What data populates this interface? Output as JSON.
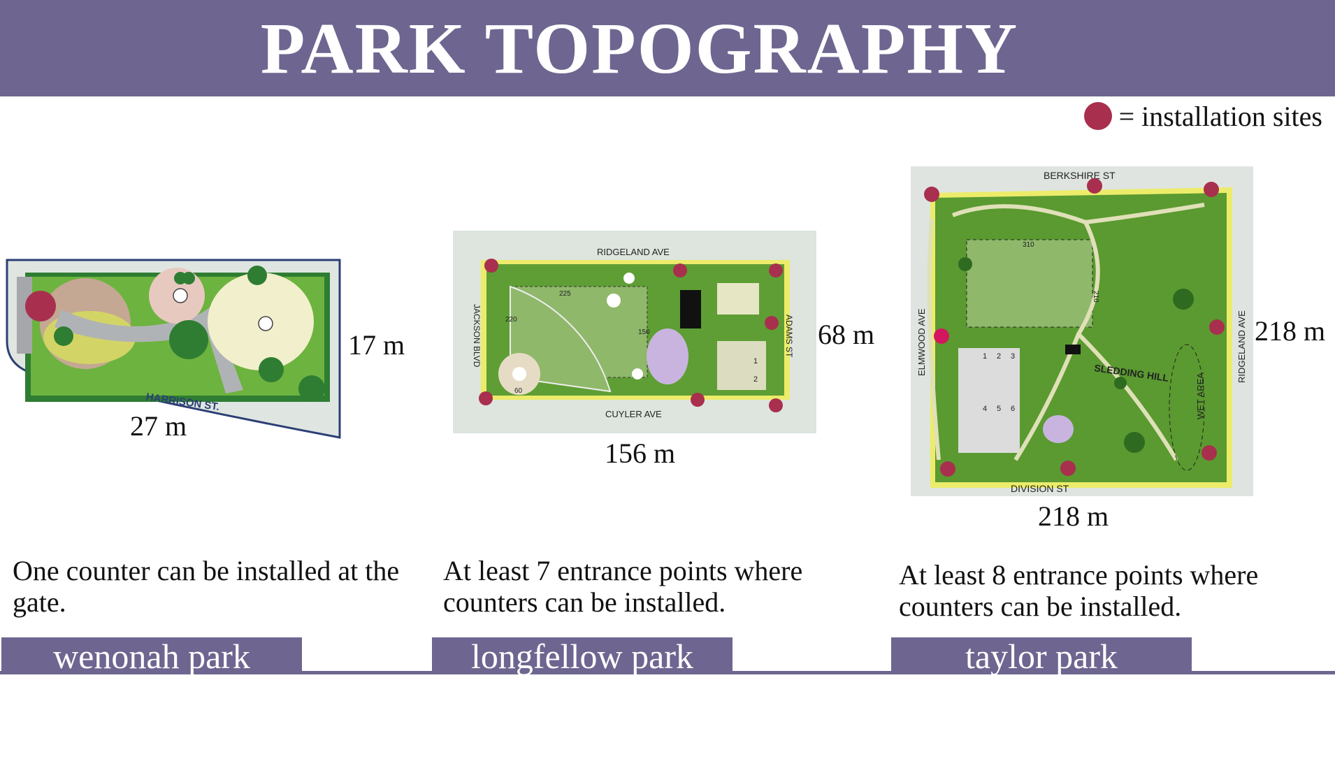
{
  "title": "PARK TOPOGRAPHY",
  "legend": {
    "marker_color": "#a82f4e",
    "label": "= installation sites"
  },
  "colors": {
    "banner": "#6e6690",
    "marker": "#a82f4e",
    "grass": "#6db33f",
    "field": "#8fb86a"
  },
  "parks": [
    {
      "name": "wenonah park",
      "description": "One counter can be installed at the gate.",
      "width_label": "27 m",
      "height_label": "17 m",
      "street_labels": [
        "HARRISON ST."
      ],
      "installation_sites": 1
    },
    {
      "name": "longfellow park",
      "description": "At least 7 entrance points where counters can be installed.",
      "width_label": "156 m",
      "height_label": "68 m",
      "street_labels": [
        "RIDGELAND AVE",
        "CUYLER AVE",
        "JACKSON BLVD",
        "ADAMS ST"
      ],
      "field_labels": [
        "225",
        "220",
        "150",
        "60",
        "1",
        "2"
      ],
      "installation_sites": 7
    },
    {
      "name": "taylor park",
      "description": "At least 8 entrance points where counters can be installed.",
      "width_label": "218 m",
      "height_label": "218 m",
      "street_labels": [
        "BERKSHIRE ST",
        "DIVISION ST",
        "ELMWOOD AVE",
        "RIDGELAND AVE"
      ],
      "area_labels": [
        "SLEDDING HILL",
        "WET AREA"
      ],
      "field_labels": [
        "310",
        "210",
        "1",
        "2",
        "3",
        "4",
        "5",
        "6"
      ],
      "installation_sites": 8
    }
  ]
}
